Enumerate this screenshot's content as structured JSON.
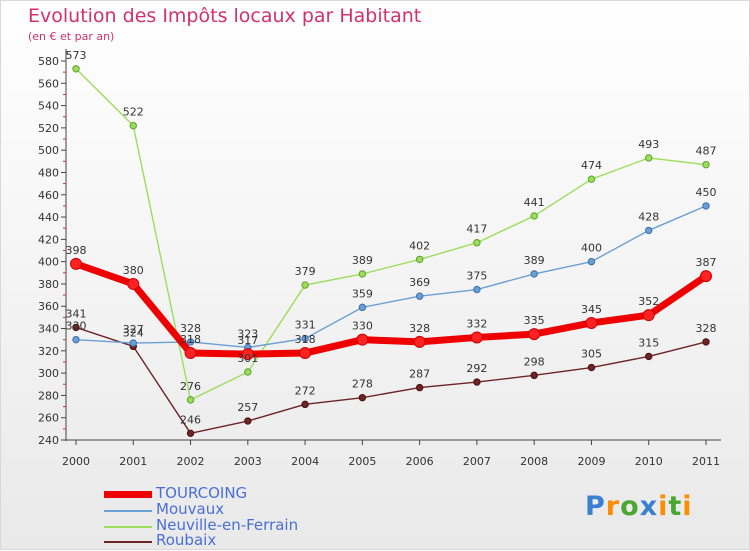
{
  "header": {
    "title": "Evolution des Impôts locaux par Habitant",
    "subtitle": "(en € et par an)"
  },
  "chart_data": {
    "type": "line",
    "title": "Evolution des Impôts locaux par Habitant",
    "subtitle": "(en € et par an)",
    "xlabel": "",
    "ylabel": "",
    "x": [
      "2000",
      "2001",
      "2002",
      "2003",
      "2004",
      "2005",
      "2006",
      "2007",
      "2008",
      "2009",
      "2010",
      "2011"
    ],
    "ylim": [
      240,
      580
    ],
    "yticks": [
      240,
      260,
      280,
      300,
      320,
      340,
      360,
      380,
      400,
      420,
      440,
      460,
      480,
      500,
      520,
      540,
      560,
      580
    ],
    "grid": false,
    "legend_position": "bottom-left",
    "series": [
      {
        "name": "TOURCOING",
        "color": "#ee0000",
        "width": 7,
        "marker": 5.5,
        "values": [
          398,
          380,
          318,
          317,
          318,
          330,
          328,
          332,
          335,
          345,
          352,
          387
        ]
      },
      {
        "name": "Mouvaux",
        "color": "#6a9fd4",
        "width": 1.4,
        "marker": 3.2,
        "values": [
          330,
          327,
          328,
          323,
          331,
          359,
          369,
          375,
          389,
          400,
          428,
          450
        ]
      },
      {
        "name": "Neuville-en-Ferrain",
        "color": "#9ddd5c",
        "width": 1.4,
        "marker": 3.2,
        "values": [
          573,
          522,
          276,
          301,
          379,
          389,
          402,
          417,
          441,
          474,
          493,
          487
        ]
      },
      {
        "name": "Roubaix",
        "color": "#6e2525",
        "width": 1.4,
        "marker": 3.2,
        "values": [
          341,
          324,
          246,
          257,
          272,
          278,
          287,
          292,
          298,
          305,
          315,
          328
        ]
      }
    ]
  },
  "logo": {
    "letters": [
      "P",
      "r",
      "o",
      "x",
      "i",
      "t",
      "i"
    ],
    "colors": [
      "#3a7fd0",
      "#ff8c00",
      "#4aa832",
      "#3a7fd0",
      "#ff8c00",
      "#4aa832",
      "#ff8c00"
    ]
  }
}
